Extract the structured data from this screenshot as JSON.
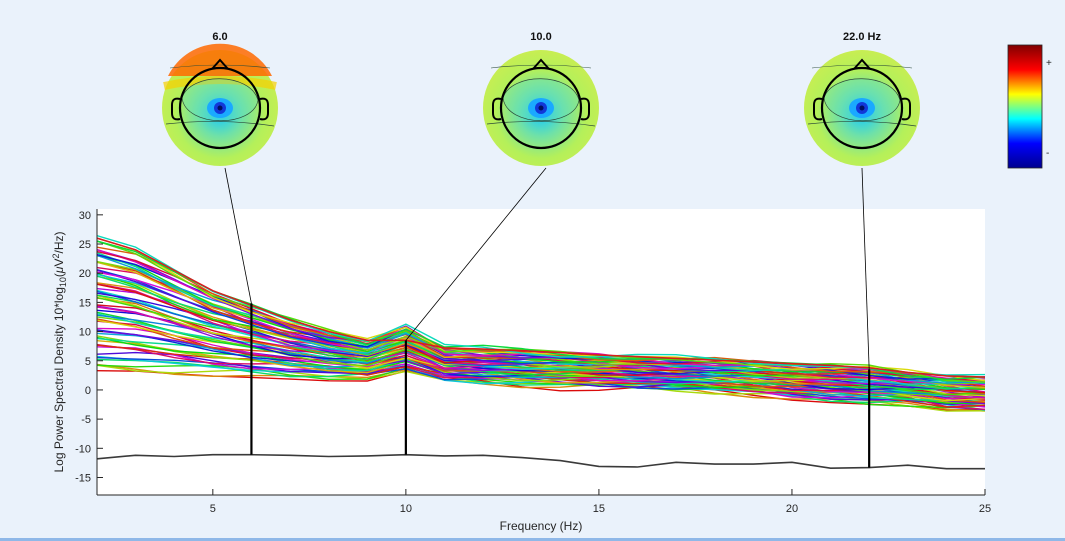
{
  "chart_data": {
    "type": "line",
    "title": "",
    "xlabel": "Frequency (Hz)",
    "ylabel_parts": [
      "Log Power Spectral Density 10*log",
      "10",
      "(",
      "μ",
      "V",
      "2",
      "/Hz)"
    ],
    "xlim": [
      2,
      25
    ],
    "ylim": [
      -18,
      31
    ],
    "xticks": [
      5,
      10,
      15,
      20,
      25
    ],
    "yticks": [
      -15,
      -10,
      -5,
      0,
      5,
      10,
      15,
      20,
      25,
      30
    ],
    "grid": false,
    "legend": "none",
    "channel_count": 64,
    "curves_x": [
      2,
      3,
      4,
      5,
      6,
      7,
      8,
      9,
      10,
      11,
      12,
      13,
      14,
      15,
      16,
      17,
      18,
      19,
      20,
      21,
      22,
      23,
      24,
      25
    ],
    "upper_envelope": [
      26,
      24,
      20.5,
      17,
      14.5,
      12,
      10,
      8.5,
      7.5,
      7.2,
      7,
      6.7,
      6.4,
      6,
      5.7,
      5.4,
      5.1,
      4.8,
      4.5,
      4.2,
      3.8,
      3,
      2.4,
      2.2
    ],
    "lower_envelope": [
      3,
      2.8,
      2.6,
      2.4,
      2.2,
      2,
      1.9,
      1.8,
      2,
      1.5,
      1.1,
      0.8,
      0.6,
      0.4,
      0.2,
      0,
      -0.3,
      -0.8,
      -1.5,
      -2,
      -2.3,
      -2.6,
      -3.5,
      -3.8
    ],
    "alpha_peak": {
      "x": 10,
      "height": 3.5
    },
    "reference_curve": {
      "name": "",
      "color": "#3a3a3a",
      "x": [
        2,
        3,
        4,
        5,
        6,
        7,
        8,
        9,
        10,
        11,
        12,
        13,
        14,
        15,
        16,
        17,
        18,
        19,
        20,
        21,
        22,
        23,
        24,
        25
      ],
      "y": [
        -11.8,
        -11.2,
        -11.4,
        -11.1,
        -11.1,
        -11.2,
        -11.4,
        -11.3,
        -11.1,
        -11.3,
        -11.2,
        -11.6,
        -12.1,
        -13.1,
        -13.2,
        -12.4,
        -12.7,
        -12.7,
        -12.4,
        -13.4,
        -13.3,
        -12.9,
        -13.5,
        -13.5
      ]
    },
    "markers": [
      {
        "freq": 6,
        "y_top": 14.8,
        "label": "6.0"
      },
      {
        "freq": 10,
        "y_top": 8.5,
        "label": "10.0"
      },
      {
        "freq": 22,
        "y_top": 3.5,
        "label": "22.0 Hz"
      }
    ],
    "colorbar": {
      "plus_label": "+",
      "minus_label": "-",
      "stops": [
        "#00008f",
        "#0000ff",
        "#00ffff",
        "#ffff00",
        "#ff0000",
        "#800000"
      ]
    }
  }
}
